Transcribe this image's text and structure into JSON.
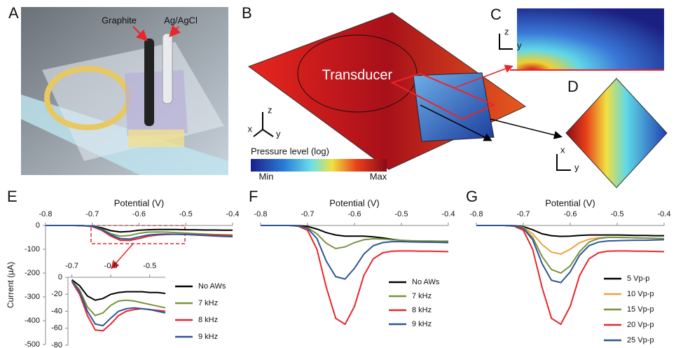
{
  "panels": {
    "A": {
      "label": "A",
      "graphite": "Graphite",
      "agagcl": "Ag/AgCl"
    },
    "B": {
      "label": "B",
      "transducer": "Transducer",
      "axes": [
        "z",
        "x",
        "y"
      ],
      "colorbar": {
        "title": "Pressure level (log)",
        "min": "Min",
        "max": "Max"
      }
    },
    "C": {
      "label": "C",
      "axes": [
        "z",
        "y"
      ]
    },
    "D": {
      "label": "D",
      "axes": [
        "x",
        "y"
      ]
    }
  },
  "chart_data": [
    {
      "type": "line",
      "panel": "E",
      "xlabel": "Potential (V)",
      "ylabel": "Current (µA)",
      "x": [
        -0.8,
        -0.78,
        -0.76,
        -0.74,
        -0.72,
        -0.7,
        -0.68,
        -0.66,
        -0.64,
        -0.62,
        -0.6,
        -0.58,
        -0.56,
        -0.54,
        -0.52,
        -0.5,
        -0.48,
        -0.46,
        -0.44,
        -0.42,
        -0.4
      ],
      "xlim": [
        -0.8,
        -0.4
      ],
      "xticks": [
        -0.8,
        -0.7,
        -0.6,
        -0.5,
        -0.4
      ],
      "ylim": [
        -500,
        0
      ],
      "yticks": [
        0,
        -100,
        -200,
        -300,
        -400,
        -500
      ],
      "series": [
        {
          "name": "No AWs",
          "color": "#000000",
          "values": [
            0,
            0,
            0,
            0,
            -1,
            -3,
            -10,
            -22,
            -27,
            -25,
            -20,
            -18,
            -17,
            -17,
            -17,
            -18,
            -18,
            -19,
            -19,
            -20,
            -20
          ]
        },
        {
          "name": "7 kHz",
          "color": "#77933c",
          "values": [
            0,
            0,
            0,
            0,
            -1,
            -4,
            -15,
            -35,
            -45,
            -42,
            -33,
            -28,
            -27,
            -28,
            -30,
            -32,
            -34,
            -36,
            -38,
            -39,
            -40
          ]
        },
        {
          "name": "8 kHz",
          "color": "#e8262b",
          "values": [
            0,
            0,
            0,
            0,
            -1,
            -5,
            -20,
            -45,
            -62,
            -63,
            -55,
            -45,
            -40,
            -38,
            -37,
            -38,
            -39,
            -40,
            -41,
            -42,
            -43
          ]
        },
        {
          "name": "9 kHz",
          "color": "#2e5597",
          "values": [
            0,
            0,
            0,
            0,
            -1,
            -4,
            -17,
            -40,
            -55,
            -57,
            -48,
            -40,
            -37,
            -36,
            -37,
            -38,
            -40,
            -42,
            -44,
            -46,
            -47
          ]
        }
      ]
    },
    {
      "type": "line",
      "x": [
        -0.7,
        -0.68,
        -0.66,
        -0.64,
        -0.62,
        -0.6,
        -0.58,
        -0.56,
        -0.54,
        -0.52,
        -0.5,
        -0.48,
        -0.46
      ],
      "xlim": [
        -0.71,
        -0.46
      ],
      "xticks": [
        -0.7,
        -0.6,
        -0.5
      ],
      "ylim": [
        -80,
        0
      ],
      "yticks": [
        0,
        -20,
        -40,
        -60,
        -80
      ],
      "series": [
        {
          "color": "#000000",
          "values": [
            -3,
            -10,
            -22,
            -27,
            -25,
            -20,
            -18,
            -17,
            -17,
            -17,
            -18,
            -18,
            -19
          ]
        },
        {
          "color": "#77933c",
          "values": [
            -4,
            -15,
            -35,
            -45,
            -42,
            -33,
            -28,
            -27,
            -28,
            -30,
            -32,
            -34,
            -36
          ]
        },
        {
          "color": "#e8262b",
          "values": [
            -5,
            -20,
            -45,
            -62,
            -63,
            -55,
            -45,
            -40,
            -38,
            -37,
            -38,
            -39,
            -40
          ]
        },
        {
          "color": "#2e5597",
          "values": [
            -4,
            -17,
            -40,
            -55,
            -57,
            -48,
            -40,
            -37,
            -36,
            -37,
            -38,
            -40,
            -42
          ]
        }
      ]
    },
    {
      "type": "line",
      "panel": "F",
      "xlabel": "Potential (V)",
      "x": [
        -0.8,
        -0.78,
        -0.76,
        -0.74,
        -0.72,
        -0.7,
        -0.68,
        -0.66,
        -0.64,
        -0.62,
        -0.6,
        -0.58,
        -0.56,
        -0.54,
        -0.52,
        -0.5,
        -0.48,
        -0.46,
        -0.44,
        -0.42,
        -0.4
      ],
      "xlim": [
        -0.8,
        -0.4
      ],
      "xticks": [
        -0.8,
        -0.7,
        -0.6,
        -0.5,
        -0.4
      ],
      "ylim": [
        -500,
        0
      ],
      "series": [
        {
          "name": "No AWs",
          "color": "#000000",
          "values": [
            0,
            0,
            0,
            0,
            -1,
            -4,
            -15,
            -30,
            -40,
            -45,
            -45,
            -45,
            -48,
            -52,
            -58,
            -63,
            -67,
            -69,
            -70,
            -70,
            -70
          ]
        },
        {
          "name": "7 kHz",
          "color": "#77933c",
          "values": [
            0,
            0,
            0,
            0,
            -2,
            -10,
            -35,
            -75,
            -97,
            -90,
            -72,
            -60,
            -56,
            -57,
            -60,
            -62,
            -64,
            -65,
            -65,
            -66,
            -66
          ]
        },
        {
          "name": "8 kHz",
          "color": "#e8262b",
          "values": [
            0,
            0,
            0,
            0,
            -3,
            -20,
            -100,
            -260,
            -390,
            -415,
            -340,
            -210,
            -140,
            -115,
            -108,
            -107,
            -107,
            -108,
            -108,
            -109,
            -110
          ]
        },
        {
          "name": "9 kHz",
          "color": "#2e5597",
          "values": [
            0,
            0,
            0,
            0,
            -2,
            -12,
            -55,
            -150,
            -215,
            -225,
            -180,
            -120,
            -85,
            -72,
            -68,
            -68,
            -69,
            -70,
            -70,
            -71,
            -72
          ]
        }
      ]
    },
    {
      "type": "line",
      "panel": "G",
      "xlabel": "Potential (V)",
      "x": [
        -0.8,
        -0.78,
        -0.76,
        -0.74,
        -0.72,
        -0.7,
        -0.68,
        -0.66,
        -0.64,
        -0.62,
        -0.6,
        -0.58,
        -0.56,
        -0.54,
        -0.52,
        -0.5,
        -0.48,
        -0.46,
        -0.44,
        -0.42,
        -0.4
      ],
      "xlim": [
        -0.8,
        -0.4
      ],
      "xticks": [
        -0.8,
        -0.7,
        -0.6,
        -0.5,
        -0.4
      ],
      "ylim": [
        -500,
        0
      ],
      "series": [
        {
          "name": "5 Vp-p",
          "color": "#000000",
          "values": [
            0,
            0,
            0,
            0,
            -1,
            -5,
            -18,
            -35,
            -43,
            -46,
            -45,
            -42,
            -40,
            -40,
            -40,
            -40,
            -41,
            -42,
            -42,
            -43,
            -43
          ]
        },
        {
          "name": "10 Vp-p",
          "color": "#f0a040",
          "values": [
            0,
            0,
            0,
            0,
            -2,
            -8,
            -35,
            -80,
            -112,
            -120,
            -100,
            -72,
            -58,
            -52,
            -50,
            -50,
            -51,
            -52,
            -53,
            -54,
            -55
          ]
        },
        {
          "name": "15 Vp-p",
          "color": "#77933c",
          "values": [
            0,
            0,
            0,
            0,
            -2,
            -10,
            -50,
            -130,
            -185,
            -200,
            -170,
            -110,
            -70,
            -55,
            -50,
            -50,
            -51,
            -52,
            -53,
            -54,
            -55
          ]
        },
        {
          "name": "20 Vp-p",
          "color": "#e8262b",
          "values": [
            0,
            0,
            0,
            0,
            -3,
            -20,
            -100,
            -260,
            -390,
            -415,
            -340,
            -210,
            -140,
            -115,
            -108,
            -107,
            -107,
            -108,
            -108,
            -109,
            -110
          ]
        },
        {
          "name": "25 Vp-p",
          "color": "#2e5597",
          "values": [
            0,
            0,
            0,
            0,
            -2,
            -12,
            -60,
            -160,
            -230,
            -240,
            -195,
            -125,
            -85,
            -70,
            -65,
            -64,
            -63,
            -62,
            -62,
            -61,
            -60
          ]
        }
      ]
    }
  ]
}
